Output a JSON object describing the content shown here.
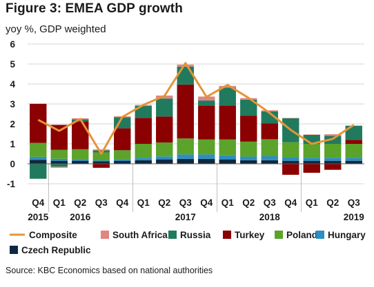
{
  "figure": {
    "title": "Figure 3: EMEA GDP growth",
    "subtitle": "yoy %, GDP weighted",
    "source": "Source: KBC Economics based on national authorities"
  },
  "chart_data": {
    "type": "bar",
    "stacked": true,
    "ylim": [
      -1,
      6
    ],
    "yticks": [
      "-1",
      "0",
      "1",
      "2",
      "3",
      "4",
      "5",
      "6"
    ],
    "quarter_labels": [
      "Q4",
      "Q1",
      "Q2",
      "Q3",
      "Q4",
      "Q1",
      "Q2",
      "Q3",
      "Q4",
      "Q1",
      "Q2",
      "Q3",
      "Q4",
      "Q1",
      "Q2",
      "Q3"
    ],
    "year_labels": [
      {
        "label": "2015",
        "index": 0
      },
      {
        "label": "2016",
        "index": 2
      },
      {
        "label": "2017",
        "index": 7
      },
      {
        "label": "2018",
        "index": 11
      },
      {
        "label": "2019",
        "index": 15
      }
    ],
    "series": [
      {
        "name": "Czech Republic",
        "color": "#0e2841",
        "values": [
          0.2,
          0.15,
          0.15,
          0.12,
          0.15,
          0.18,
          0.22,
          0.25,
          0.25,
          0.22,
          0.18,
          0.18,
          0.15,
          0.15,
          0.15,
          0.15
        ]
      },
      {
        "name": "Hungary",
        "color": "#2d8fbf",
        "values": [
          0.15,
          0.1,
          0.08,
          0.05,
          0.08,
          0.12,
          0.15,
          0.22,
          0.22,
          0.2,
          0.18,
          0.2,
          0.18,
          0.15,
          0.15,
          0.15
        ]
      },
      {
        "name": "Poland",
        "color": "#5ba32b",
        "values": [
          0.7,
          0.45,
          0.5,
          0.4,
          0.45,
          0.7,
          0.7,
          0.8,
          0.75,
          0.8,
          0.75,
          0.85,
          0.75,
          0.7,
          0.7,
          0.7
        ]
      },
      {
        "name": "Turkey",
        "color": "#8b0000",
        "values": [
          1.95,
          1.25,
          1.4,
          -0.2,
          1.1,
          1.3,
          1.3,
          2.7,
          1.7,
          1.7,
          1.3,
          0.8,
          -0.55,
          -0.45,
          -0.3,
          0.2
        ]
      },
      {
        "name": "Russia",
        "color": "#217a5e",
        "values": [
          -0.75,
          -0.15,
          0.1,
          0.1,
          0.55,
          0.6,
          0.9,
          0.9,
          0.25,
          0.9,
          0.8,
          0.6,
          1.2,
          0.45,
          0.4,
          0.7
        ]
      },
      {
        "name": "South Africa",
        "color": "#e0857f",
        "values": [
          0.02,
          -0.05,
          0.05,
          0.05,
          0.05,
          0.05,
          0.15,
          0.1,
          0.2,
          0.08,
          0.08,
          0.05,
          0.02,
          0.02,
          0.08,
          0.02
        ]
      }
    ],
    "composite": {
      "name": "Composite",
      "color": "#e59437",
      "values": [
        2.2,
        1.65,
        2.25,
        0.5,
        2.35,
        2.95,
        3.4,
        5.05,
        3.35,
        3.95,
        3.3,
        2.55,
        1.7,
        1.0,
        1.25,
        1.95
      ]
    },
    "legend_order": [
      "Composite",
      "South Africa",
      "Russia",
      "Turkey",
      "Poland",
      "Hungary",
      "Czech Republic"
    ],
    "grid": true,
    "legend_position": "bottom"
  }
}
